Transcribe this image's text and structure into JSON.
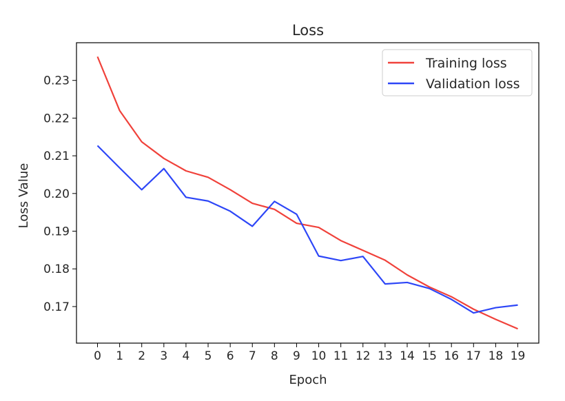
{
  "chart_data": {
    "type": "line",
    "title": "Loss",
    "xlabel": "Epoch",
    "ylabel": "Loss Value",
    "x": [
      0,
      1,
      2,
      3,
      4,
      5,
      6,
      7,
      8,
      9,
      10,
      11,
      12,
      13,
      14,
      15,
      16,
      17,
      18,
      19
    ],
    "xticks": [
      "0",
      "1",
      "2",
      "3",
      "4",
      "5",
      "6",
      "7",
      "8",
      "9",
      "10",
      "11",
      "12",
      "13",
      "14",
      "15",
      "16",
      "17",
      "18",
      "19"
    ],
    "yticks": [
      0.17,
      0.18,
      0.19,
      0.2,
      0.21,
      0.22,
      0.23
    ],
    "ytick_labels": [
      "0.17",
      "0.18",
      "0.19",
      "0.20",
      "0.21",
      "0.22",
      "0.23"
    ],
    "xlim": [
      -0.95,
      19.95
    ],
    "ylim": [
      0.1603,
      0.24
    ],
    "grid": false,
    "legend_position": "top-right",
    "series": [
      {
        "name": "Training loss",
        "color": "#f0413a",
        "values": [
          0.2363,
          0.222,
          0.2137,
          0.2093,
          0.206,
          0.2043,
          0.201,
          0.1974,
          0.1958,
          0.1921,
          0.191,
          0.1875,
          0.1849,
          0.1823,
          0.1784,
          0.1752,
          0.1726,
          0.1693,
          0.1666,
          0.1641
        ]
      },
      {
        "name": "Validation loss",
        "color": "#2d46f7",
        "values": [
          0.2127,
          0.2068,
          0.201,
          0.2066,
          0.199,
          0.198,
          0.1953,
          0.1913,
          0.1979,
          0.1945,
          0.1834,
          0.1822,
          0.1833,
          0.176,
          0.1764,
          0.1748,
          0.1719,
          0.1683,
          0.1697,
          0.1704
        ]
      }
    ]
  }
}
